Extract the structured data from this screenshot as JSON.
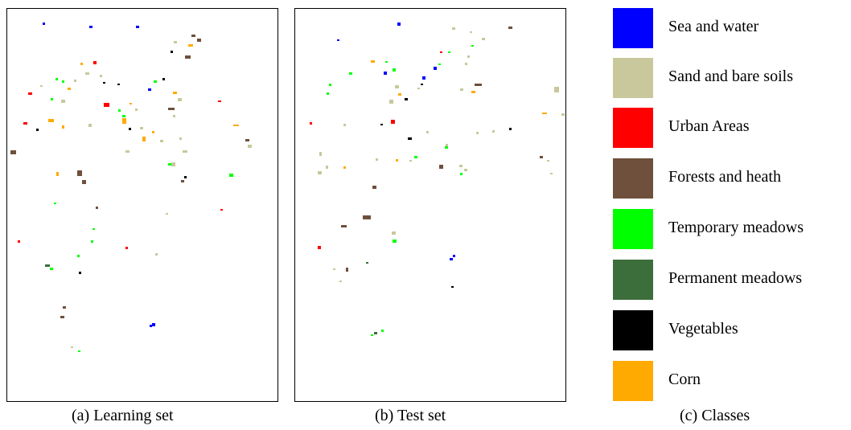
{
  "figure": {
    "panels": [
      {
        "caption": "(a) Learning set"
      },
      {
        "caption": "(b) Test set"
      }
    ],
    "legend_caption": "(c) Classes",
    "classes": [
      {
        "label": "Sea and water",
        "color": "#0000ff"
      },
      {
        "label": "Sand and bare soils",
        "color": "#c8c89c"
      },
      {
        "label": "Urban Areas",
        "color": "#ff0000"
      },
      {
        "label": "Forests and heath",
        "color": "#6e503c"
      },
      {
        "label": "Temporary meadows",
        "color": "#00ff00"
      },
      {
        "label": "Permanent meadows",
        "color": "#3c6e3c"
      },
      {
        "label": "Vegetables",
        "color": "#000000"
      },
      {
        "label": "Corn",
        "color": "#ffaa00"
      }
    ]
  }
}
